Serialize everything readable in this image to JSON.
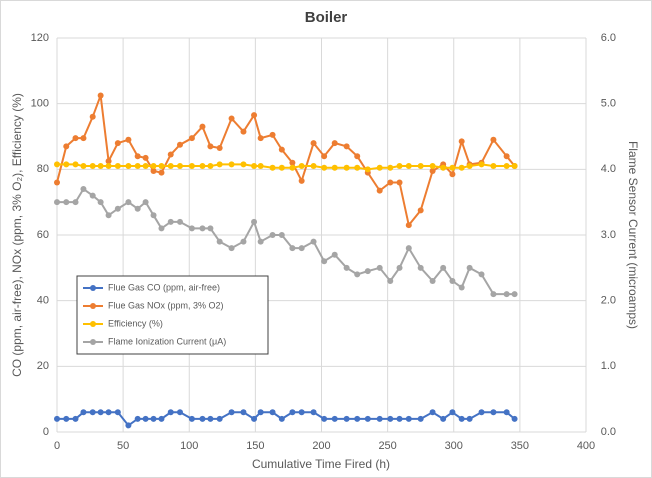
{
  "chart_data": {
    "type": "line",
    "title": "Boiler",
    "xlabel": "Cumulative Time Fired (h)",
    "ylabel": "CO (ppm, air-free), NOx (ppm, 3% O₂), Efficiency (%)",
    "y2label": "Flame Sensor Current (microamps)",
    "x": [
      0,
      7,
      14,
      20,
      27,
      33,
      39,
      46,
      54,
      61,
      67,
      73,
      79,
      86,
      93,
      102,
      110,
      116,
      123,
      132,
      141,
      149,
      154,
      163,
      170,
      178,
      185,
      194,
      202,
      210,
      219,
      227,
      235,
      244,
      252,
      259,
      266,
      275,
      284,
      292,
      299,
      306,
      312,
      321,
      330,
      340,
      346
    ],
    "xlim": [
      0,
      400
    ],
    "xticks": [
      0,
      50,
      100,
      150,
      200,
      250,
      300,
      350,
      400
    ],
    "ylim": [
      0,
      120
    ],
    "yticks": [
      0,
      20,
      40,
      60,
      80,
      100,
      120
    ],
    "y2lim": [
      0,
      6
    ],
    "y2ticks": [
      {
        "value": 0,
        "label": "0.0"
      },
      {
        "value": 1,
        "label": "1.0"
      },
      {
        "value": 2,
        "label": "2.0"
      },
      {
        "value": 3,
        "label": "3.0"
      },
      {
        "value": 4,
        "label": "4.0"
      },
      {
        "value": 5,
        "label": "5.0"
      },
      {
        "value": 6,
        "label": "6.0"
      }
    ],
    "grid": true,
    "series": [
      {
        "name": "Flue Gas CO (ppm, air-free)",
        "color": "#4472c4",
        "values": [
          4,
          4,
          4,
          6,
          6,
          6,
          6,
          6,
          2,
          4,
          4,
          4,
          4,
          6,
          6,
          4,
          4,
          4,
          4,
          6,
          6,
          4,
          6,
          6,
          4,
          6,
          6,
          6,
          4,
          4,
          4,
          4,
          4,
          4,
          4,
          4,
          4,
          4,
          6,
          4,
          6,
          4,
          4,
          6,
          6,
          6,
          4
        ]
      },
      {
        "name": "Flue Gas NOx (ppm, 3% O2)",
        "color": "#ed7d31",
        "values": [
          76,
          87,
          89.5,
          89.5,
          96,
          102.5,
          82.5,
          88,
          89,
          84,
          83.5,
          79.5,
          79,
          84.5,
          87.5,
          89.5,
          93,
          87,
          86.5,
          95.5,
          91.5,
          96.5,
          89.5,
          90.5,
          86,
          82,
          76.5,
          88,
          84,
          88,
          87,
          84,
          79,
          73.5,
          76,
          76,
          63,
          67.5,
          79.5,
          81.5,
          78.5,
          88.5,
          81.5,
          82,
          89,
          84,
          81
        ]
      },
      {
        "name": "Efficiency (%)",
        "color": "#ffc000",
        "values": [
          81.5,
          81.5,
          81.5,
          81,
          81,
          81,
          81,
          81,
          81,
          81,
          81,
          81,
          81,
          81,
          81,
          81,
          81,
          81,
          81.5,
          81.5,
          81.5,
          81,
          81,
          80.5,
          80.5,
          80.5,
          81,
          81,
          80.5,
          80.5,
          80.5,
          80.5,
          80,
          80.5,
          80.5,
          81,
          81,
          81,
          81,
          80.5,
          80.5,
          80.5,
          81,
          81.5,
          81,
          81,
          81
        ]
      },
      {
        "name": "Flame Ionization Current (μA)",
        "color": "#a5a5a5",
        "axis": "y2",
        "values": [
          3.5,
          3.5,
          3.5,
          3.7,
          3.6,
          3.5,
          3.3,
          3.4,
          3.5,
          3.4,
          3.5,
          3.3,
          3.1,
          3.2,
          3.2,
          3.1,
          3.1,
          3.1,
          2.9,
          2.8,
          2.9,
          3.2,
          2.9,
          3.0,
          3.0,
          2.8,
          2.8,
          2.9,
          2.6,
          2.7,
          2.5,
          2.4,
          2.45,
          2.5,
          2.3,
          2.5,
          2.8,
          2.5,
          2.3,
          2.5,
          2.3,
          2.2,
          2.5,
          2.4,
          2.1,
          2.1,
          2.1
        ]
      }
    ]
  }
}
